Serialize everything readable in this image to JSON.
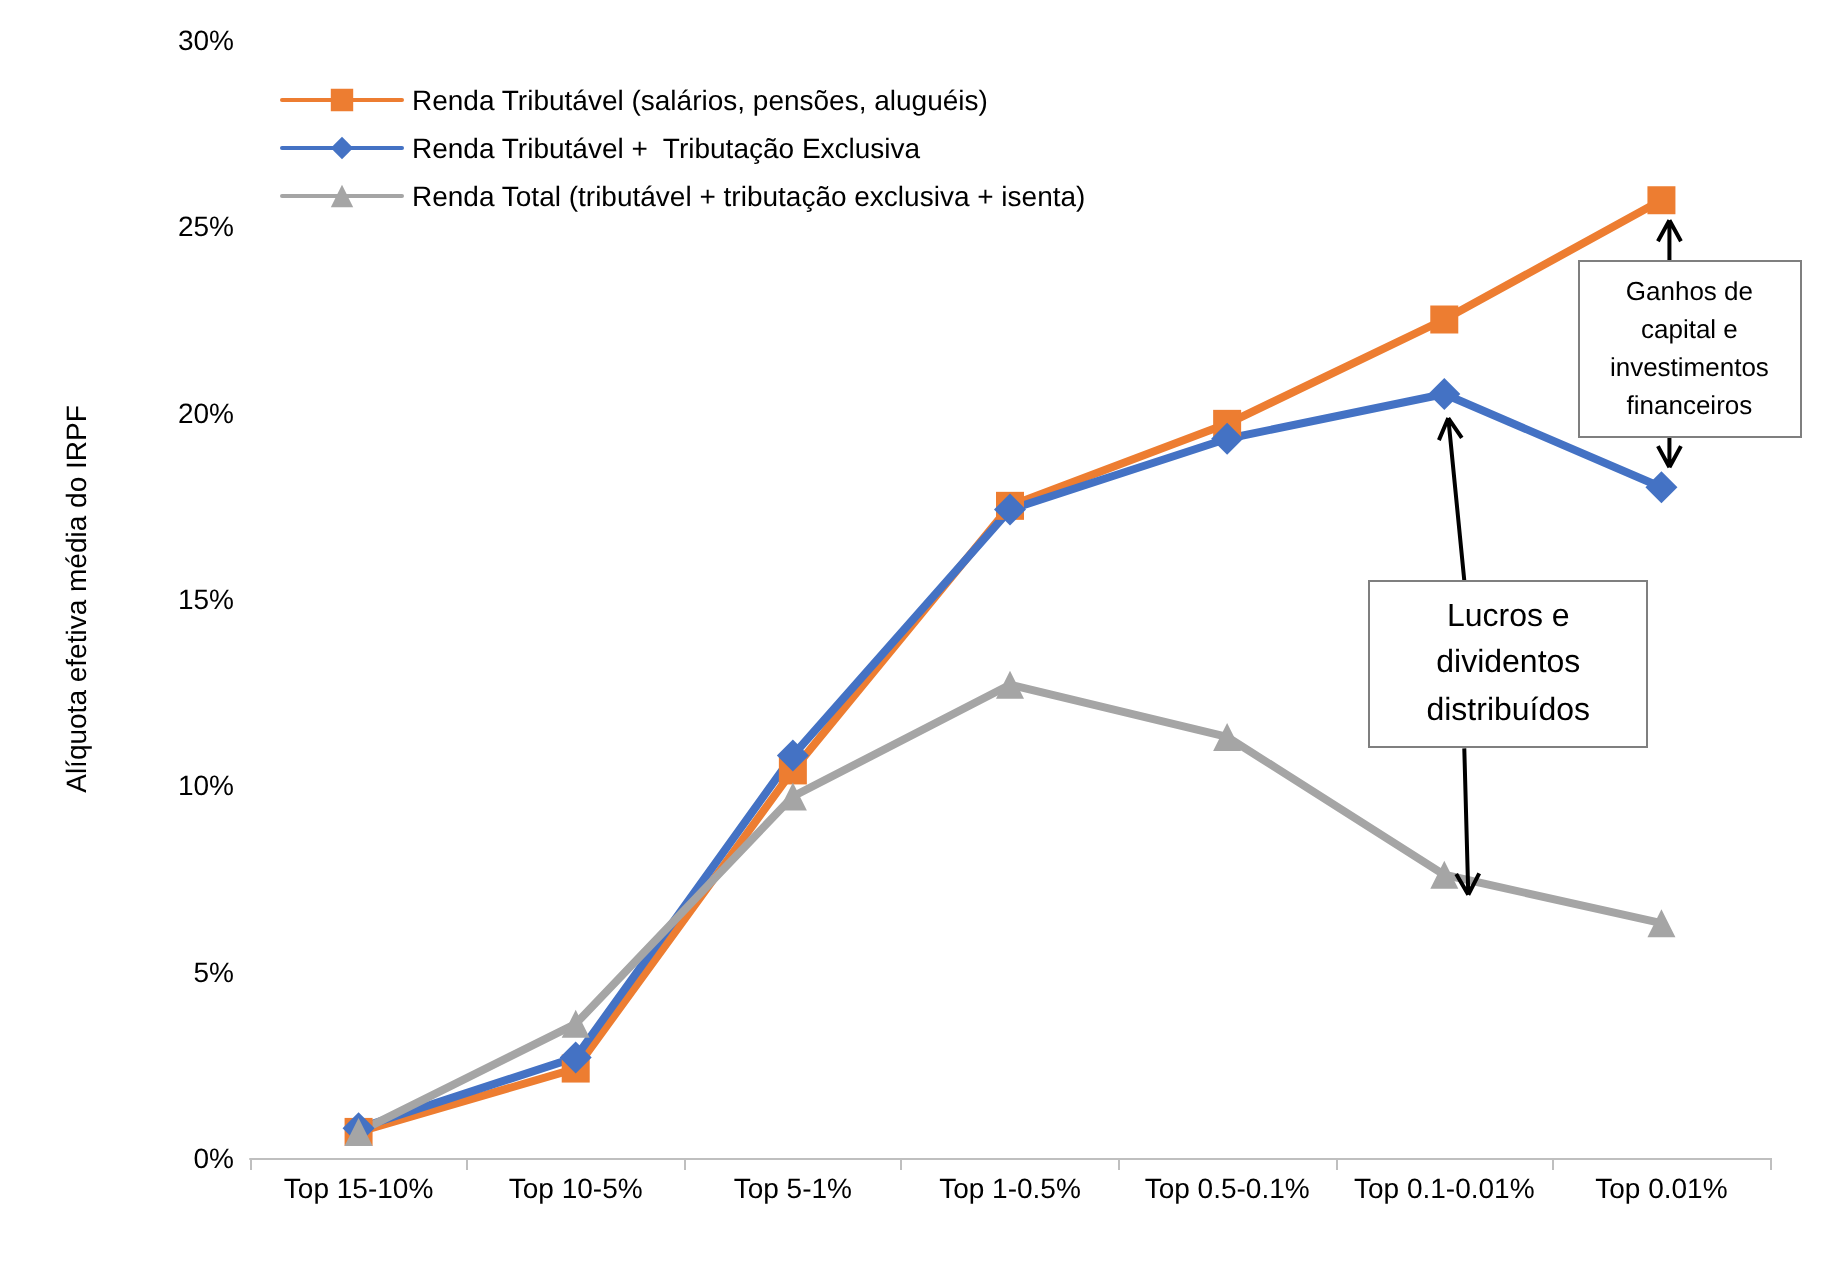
{
  "chart_data": {
    "type": "line",
    "ylabel": "Alíquota efetiva média do IRPF",
    "categories": [
      "Top 15-10%",
      "Top 10-5%",
      "Top 5-1%",
      "Top 1-0.5%",
      "Top 0.5-0.1%",
      "Top 0.1-0.01%",
      "Top 0.01%"
    ],
    "series": [
      {
        "name": "Renda Tributável (salários, pensões, aluguéis)",
        "color": "#ed7d31",
        "marker": "square",
        "values": [
          0.7,
          2.4,
          10.4,
          17.5,
          19.7,
          22.5,
          25.7
        ]
      },
      {
        "name": "Renda Tributável +  Tributação Exclusiva",
        "color": "#4472c4",
        "marker": "diamond",
        "values": [
          0.8,
          2.7,
          10.8,
          17.4,
          19.3,
          20.5,
          18.0
        ]
      },
      {
        "name": "Renda Total (tributável + tributação exclusiva + isenta)",
        "color": "#a5a5a5",
        "marker": "triangle",
        "values": [
          0.7,
          3.6,
          9.7,
          12.7,
          11.3,
          7.6,
          6.3
        ]
      }
    ],
    "ylim": [
      0,
      30
    ],
    "yticks": [
      {
        "value": 0,
        "label": "0%"
      },
      {
        "value": 5,
        "label": "5%"
      },
      {
        "value": 10,
        "label": "10%"
      },
      {
        "value": 15,
        "label": "15%"
      },
      {
        "value": 20,
        "label": "20%"
      },
      {
        "value": 25,
        "label": "25%"
      },
      {
        "value": 30,
        "label": "30%"
      }
    ],
    "grid": false,
    "legend": "top left",
    "line_style": "solid",
    "annotations": [
      "Ganhos de capital e investimentos financeiros",
      "Lucros e dividentos distribuídos"
    ]
  }
}
